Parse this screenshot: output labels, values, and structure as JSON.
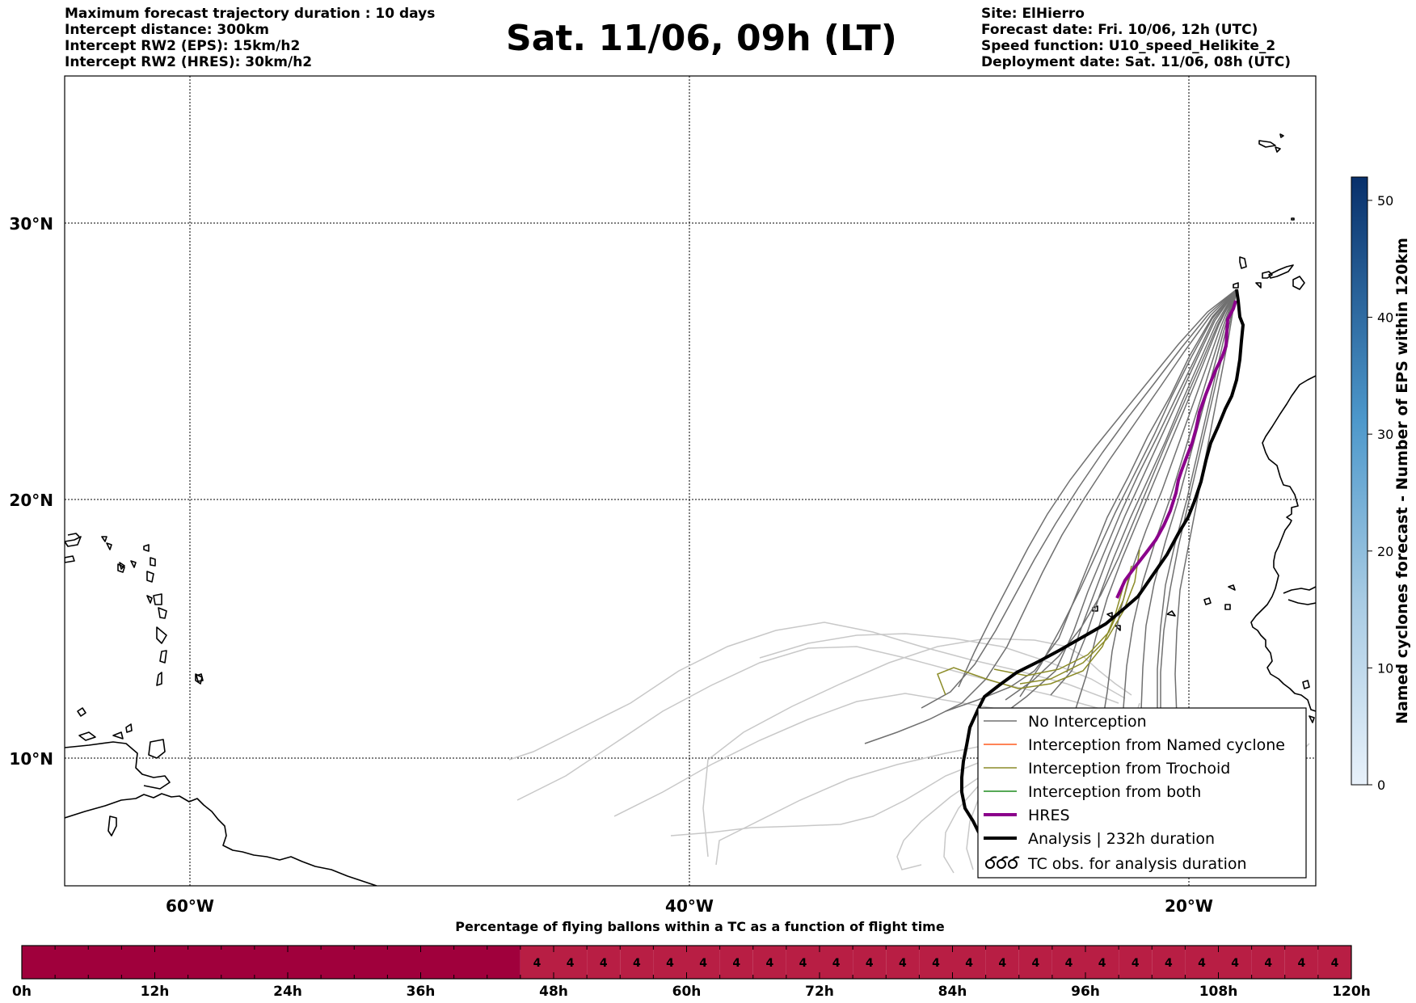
{
  "header": {
    "title": "Sat. 11/06, 09h (LT)",
    "left_lines": [
      "Maximum forecast trajectory duration : 10 days",
      "Intercept distance: 300km",
      "Intercept RW2 (EPS):  15km/h2",
      "Intercept RW2 (HRES): 30km/h2"
    ],
    "right_lines": [
      "Site: ElHierro",
      "Forecast date: Fri. 10/06, 12h (UTC)",
      "Speed function: U10_speed_Helikite_2",
      "Deployment date: Sat. 11/06, 08h (UTC)"
    ]
  },
  "map": {
    "lon_labels": [
      "60°W",
      "40°W",
      "20°W"
    ],
    "lat_labels": [
      "30°N",
      "20°N",
      "10°N"
    ],
    "lon_range": [
      -65,
      -15
    ],
    "lat_range": [
      4.7,
      34
    ]
  },
  "legend": {
    "items": [
      {
        "label": "No Interception",
        "color": "#707070",
        "style": "line"
      },
      {
        "label": "Interception from Named cyclone",
        "color": "#ff5a1e",
        "style": "line"
      },
      {
        "label": "Interception from Trochoid",
        "color": "#8c8c28",
        "style": "line"
      },
      {
        "label": "Interception from both",
        "color": "#1e8c1e",
        "style": "line"
      },
      {
        "label": "HRES",
        "color": "#8b008b",
        "style": "thick"
      },
      {
        "label": "Analysis | 232h duration",
        "color": "#000000",
        "style": "thick"
      },
      {
        "label": "TC obs. for analysis duration",
        "color": "#000000",
        "style": "cyclone-icon"
      }
    ]
  },
  "colorbar": {
    "label": "Named cyclones forecast - Number of EPS within 120km",
    "ticks": [
      "0",
      "10",
      "20",
      "30",
      "40",
      "50"
    ],
    "min": 0,
    "max": 52,
    "color_low": "#e6f0fa",
    "color_high": "#08306b"
  },
  "timeline": {
    "title": "Percentage of flying ballons within a TC as a function of flight time",
    "tick_labels": [
      "0h",
      "12h",
      "24h",
      "36h",
      "48h",
      "60h",
      "72h",
      "84h",
      "96h",
      "108h",
      "120h"
    ],
    "full_color": "#a0003c",
    "partial_color": "#b81e44",
    "full_until_cell": 15,
    "cell_count": 40,
    "cell_value": "4"
  }
}
